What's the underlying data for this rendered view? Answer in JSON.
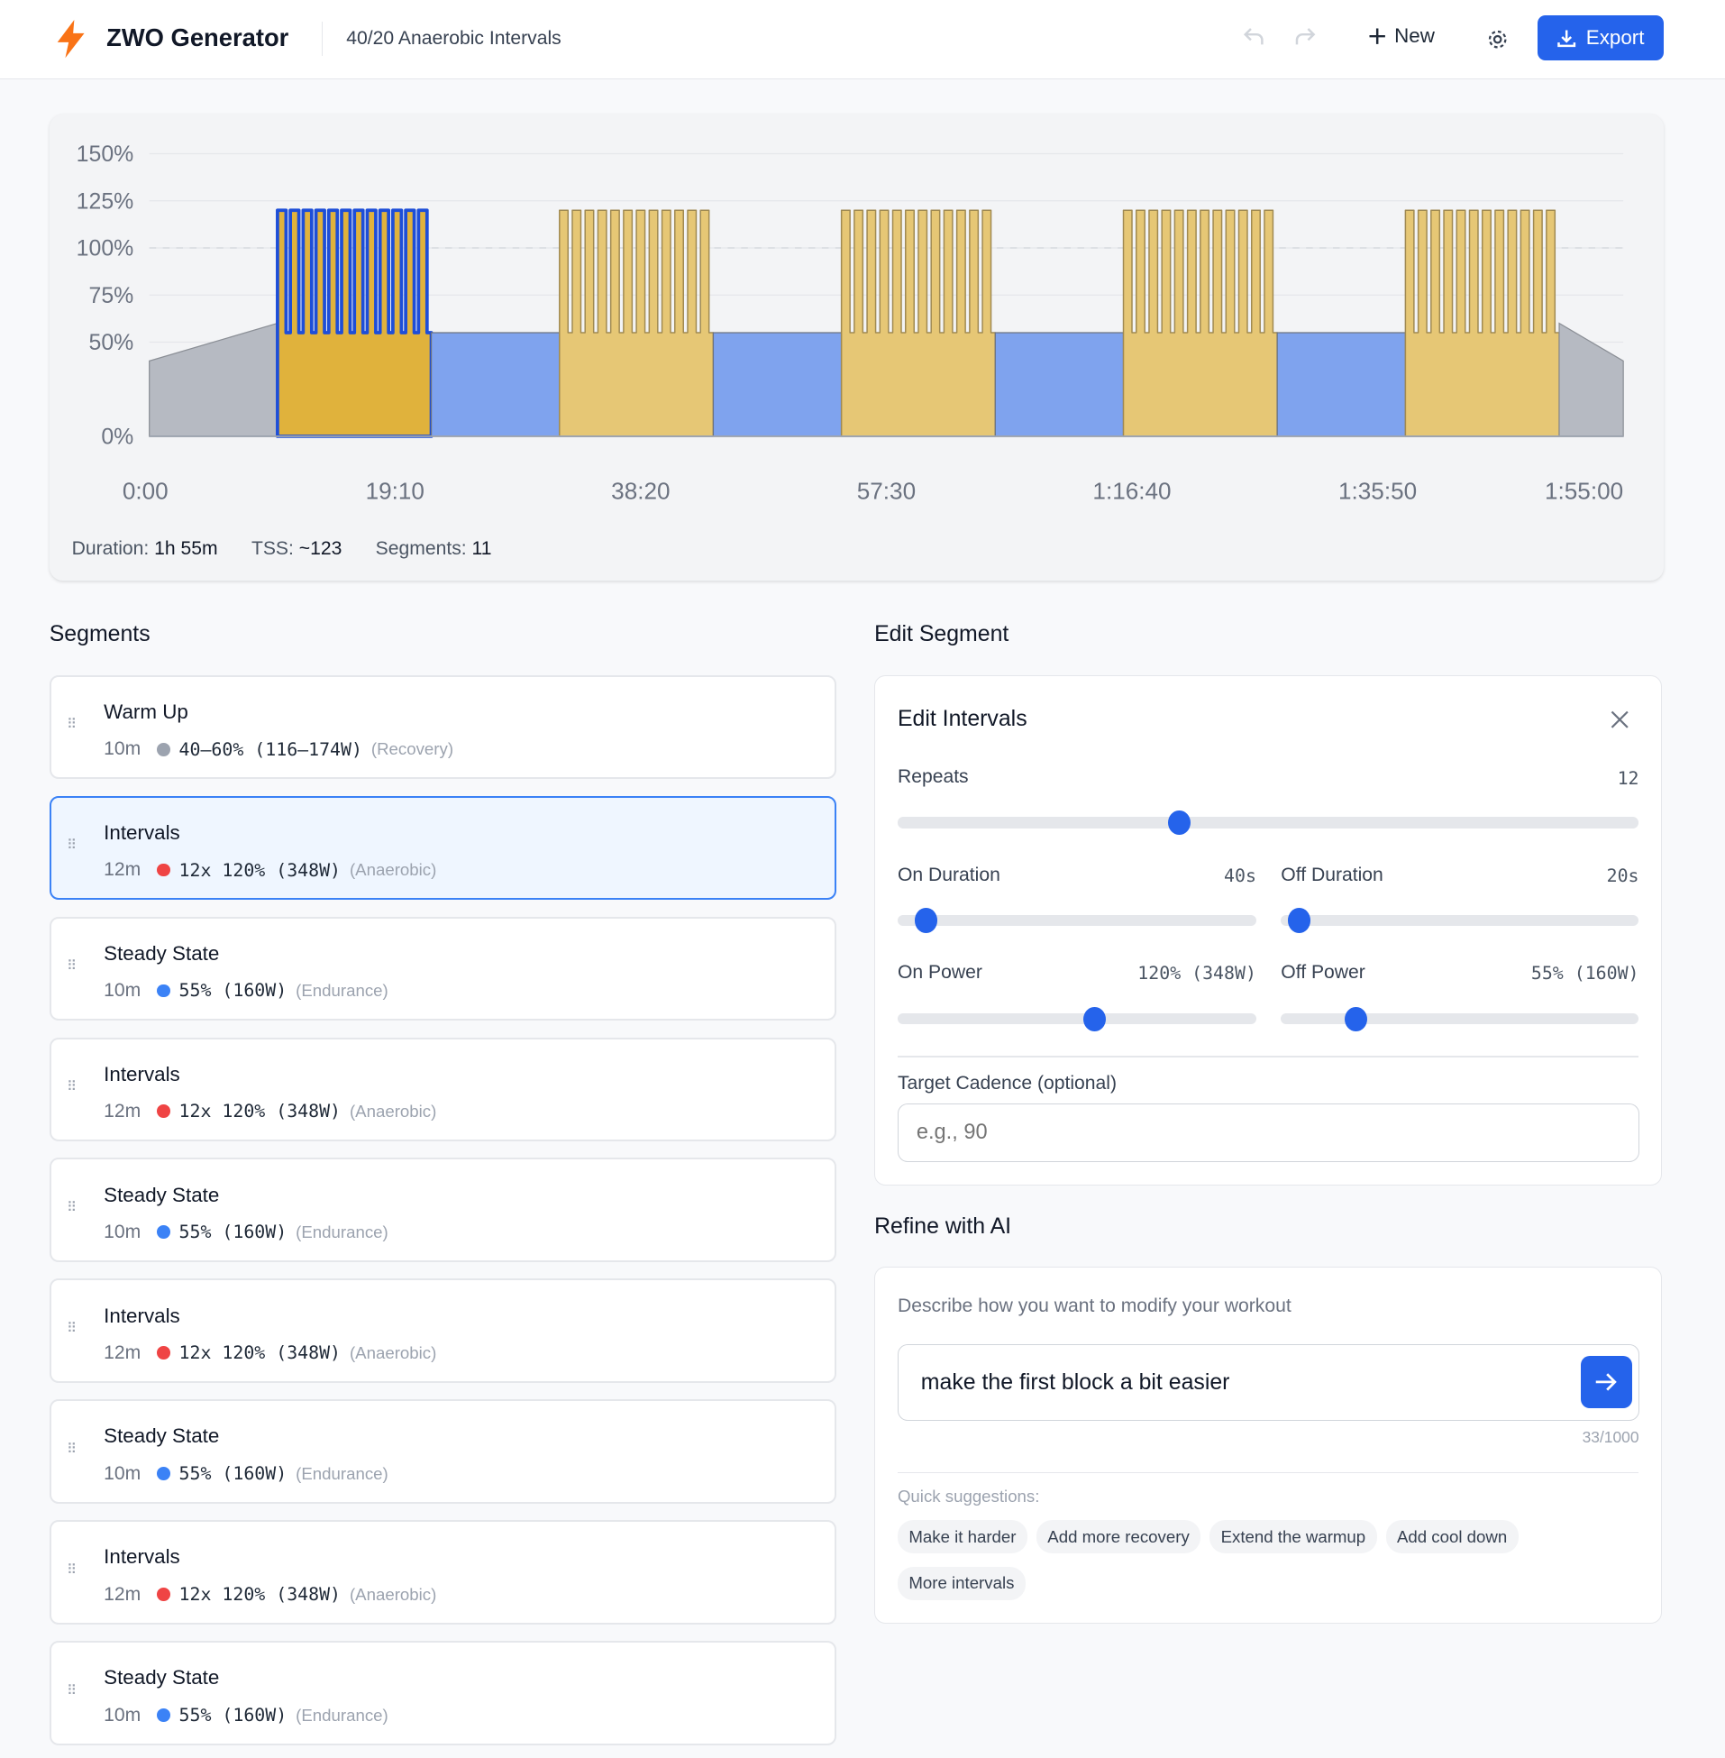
{
  "header": {
    "app_title": "ZWO Generator",
    "workout_title": "40/20 Anaerobic Intervals",
    "new_label": "New",
    "export_label": "Export",
    "brand_color": "#f97316",
    "accent_color": "#2563eb"
  },
  "summary": {
    "duration_label": "Duration:",
    "duration": "1h 55m",
    "tss_label": "TSS:",
    "tss": "~123",
    "segments_label": "Segments:",
    "segments": "11"
  },
  "chart_data": {
    "type": "area",
    "ylim": [
      0,
      150
    ],
    "yticks": [
      {
        "v": 150,
        "label": "150%"
      },
      {
        "v": 125,
        "label": "125%"
      },
      {
        "v": 100,
        "label": "100%"
      },
      {
        "v": 75,
        "label": "75%"
      },
      {
        "v": 50,
        "label": "50%"
      },
      {
        "v": 0,
        "label": "0%"
      }
    ],
    "xlim_seconds": [
      0,
      6900
    ],
    "xticks": [
      {
        "v": 0,
        "label": "0:00"
      },
      {
        "v": 1150,
        "label": "19:10"
      },
      {
        "v": 2300,
        "label": "38:20"
      },
      {
        "v": 3450,
        "label": "57:30"
      },
      {
        "v": 4600,
        "label": "1:16:40"
      },
      {
        "v": 5750,
        "label": "1:35:50"
      },
      {
        "v": 6900,
        "label": "1:55:00"
      }
    ],
    "ftp_reference": 100,
    "selected_index": 1,
    "blocks": [
      {
        "kind": "ramp",
        "minutes": 10,
        "from": 40,
        "to": 60
      },
      {
        "kind": "intervals",
        "minutes": 12,
        "repeats": 12,
        "on_s": 40,
        "off_s": 20,
        "on": 120,
        "off": 55
      },
      {
        "kind": "steady",
        "minutes": 10,
        "power": 55
      },
      {
        "kind": "intervals",
        "minutes": 12,
        "repeats": 12,
        "on_s": 40,
        "off_s": 20,
        "on": 120,
        "off": 55
      },
      {
        "kind": "steady",
        "minutes": 10,
        "power": 55
      },
      {
        "kind": "intervals",
        "minutes": 12,
        "repeats": 12,
        "on_s": 40,
        "off_s": 20,
        "on": 120,
        "off": 55
      },
      {
        "kind": "steady",
        "minutes": 10,
        "power": 55
      },
      {
        "kind": "intervals",
        "minutes": 12,
        "repeats": 12,
        "on_s": 40,
        "off_s": 20,
        "on": 120,
        "off": 55
      },
      {
        "kind": "steady",
        "minutes": 10,
        "power": 55
      },
      {
        "kind": "intervals",
        "minutes": 12,
        "repeats": 12,
        "on_s": 40,
        "off_s": 20,
        "on": 120,
        "off": 55
      },
      {
        "kind": "ramp",
        "minutes": 5,
        "from": 60,
        "to": 40
      }
    ]
  },
  "segments_heading": "Segments",
  "segments": [
    {
      "name": "Warm Up",
      "duration": "10m",
      "power": "40–60% (116–174W)",
      "zone": "(Recovery)",
      "color": "#9ca3af"
    },
    {
      "name": "Intervals",
      "duration": "12m",
      "power": "12x 120% (348W)",
      "zone": "(Anaerobic)",
      "color": "#ef4444"
    },
    {
      "name": "Steady State",
      "duration": "10m",
      "power": "55% (160W)",
      "zone": "(Endurance)",
      "color": "#3b82f6"
    },
    {
      "name": "Intervals",
      "duration": "12m",
      "power": "12x 120% (348W)",
      "zone": "(Anaerobic)",
      "color": "#ef4444"
    },
    {
      "name": "Steady State",
      "duration": "10m",
      "power": "55% (160W)",
      "zone": "(Endurance)",
      "color": "#3b82f6"
    },
    {
      "name": "Intervals",
      "duration": "12m",
      "power": "12x 120% (348W)",
      "zone": "(Anaerobic)",
      "color": "#ef4444"
    },
    {
      "name": "Steady State",
      "duration": "10m",
      "power": "55% (160W)",
      "zone": "(Endurance)",
      "color": "#3b82f6"
    },
    {
      "name": "Intervals",
      "duration": "12m",
      "power": "12x 120% (348W)",
      "zone": "(Anaerobic)",
      "color": "#ef4444"
    },
    {
      "name": "Steady State",
      "duration": "10m",
      "power": "55% (160W)",
      "zone": "(Endurance)",
      "color": "#3b82f6"
    }
  ],
  "edit": {
    "heading": "Edit Segment",
    "title": "Edit Intervals",
    "repeats": {
      "label": "Repeats",
      "value": "12",
      "fraction": 0.38
    },
    "on_duration": {
      "label": "On Duration",
      "value": "40s",
      "fraction": 0.08
    },
    "off_duration": {
      "label": "Off Duration",
      "value": "20s",
      "fraction": 0.05
    },
    "on_power": {
      "label": "On Power",
      "value": "120% (348W)",
      "fraction": 0.55
    },
    "off_power": {
      "label": "Off Power",
      "value": "55% (160W)",
      "fraction": 0.21
    },
    "cadence_label": "Target Cadence (optional)",
    "cadence_placeholder": "e.g., 90"
  },
  "ai": {
    "heading": "Refine with AI",
    "prompt": "Describe how you want to modify your workout",
    "input_value": "make the first block a bit easier",
    "counter": "33/1000",
    "suggestions_label": "Quick suggestions:",
    "suggestions": [
      "Make it harder",
      "Add more recovery",
      "Extend the warmup",
      "Add cool down",
      "More intervals"
    ]
  }
}
